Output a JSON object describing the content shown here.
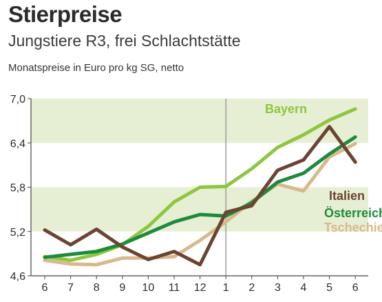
{
  "header": {
    "title": "Stierpreise",
    "subtitle": "Jungstiere R3, frei Schlachtstätte",
    "note": "Monatspreise in Euro pro kg SG, netto"
  },
  "chart_data": {
    "type": "line",
    "title": "Stierpreise",
    "subtitle": "Jungstiere R3, frei Schlachtstätte",
    "ylabel": "Monatspreise in Euro pro kg SG, netto",
    "xlabel": "",
    "x": [
      "6",
      "7",
      "8",
      "9",
      "10",
      "11",
      "12",
      "1",
      "2",
      "3",
      "4",
      "5",
      "6"
    ],
    "ylim": [
      4.6,
      7.0
    ],
    "yticks": [
      "7,0",
      "6,4",
      "5,8",
      "5,2",
      "4,6"
    ],
    "ytick_values": [
      7.0,
      6.4,
      5.8,
      5.2,
      4.6
    ],
    "year_divider_after_index": 7,
    "series": [
      {
        "name": "Bayern",
        "color": "#8dc63f",
        "values": [
          4.86,
          4.81,
          4.89,
          5.02,
          5.27,
          5.6,
          5.8,
          5.81,
          6.05,
          6.34,
          6.51,
          6.71,
          6.86
        ]
      },
      {
        "name": "Italien",
        "color": "#6b4432",
        "values": [
          5.22,
          5.02,
          5.23,
          4.99,
          4.82,
          4.93,
          4.75,
          5.46,
          5.55,
          6.03,
          6.17,
          6.62,
          6.14
        ]
      },
      {
        "name": "Österreich",
        "color": "#1e8a3c",
        "values": [
          4.85,
          4.89,
          4.93,
          5.03,
          5.18,
          5.33,
          5.43,
          5.41,
          5.59,
          5.87,
          5.99,
          6.25,
          6.48
        ]
      },
      {
        "name": "Tschechien",
        "color": "#d8b98c",
        "values": [
          4.81,
          4.76,
          4.75,
          4.84,
          4.84,
          4.86,
          5.08,
          5.33,
          5.61,
          5.84,
          5.75,
          6.21,
          6.39
        ]
      }
    ],
    "bands": [
      [
        6.4,
        7.0
      ],
      [
        5.2,
        5.8
      ]
    ],
    "band_color": "#e6efd3",
    "grid": false,
    "legend": "direct labels on right"
  }
}
